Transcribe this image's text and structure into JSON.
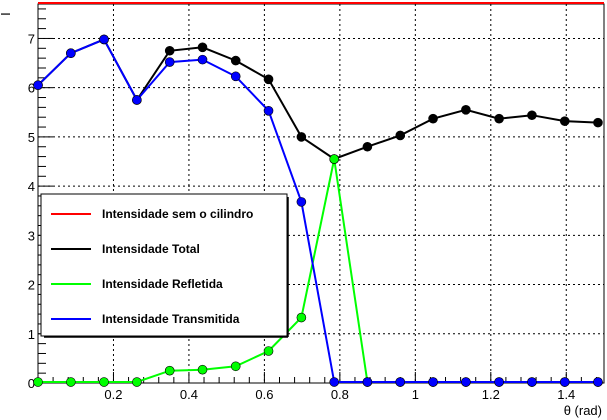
{
  "chart_data": {
    "type": "line",
    "title": "",
    "xlabel": "θ (rad)",
    "ylabel": "I",
    "xlim": [
      0,
      1.5
    ],
    "ylim": [
      0,
      7.7
    ],
    "grid": true,
    "x_ticks": [
      0.2,
      0.4,
      0.6,
      0.8,
      1,
      1.2,
      1.4
    ],
    "x_tick_labels": [
      "0.2",
      "0.4",
      "0.6",
      "0.8",
      "1",
      "1.2",
      "1.4"
    ],
    "y_ticks": [
      0,
      1,
      2,
      3,
      4,
      5,
      6,
      7
    ],
    "y_tick_labels": [
      "0",
      "1",
      "2",
      "3",
      "4",
      "5",
      "6",
      "7"
    ],
    "legend_position": "lower-left",
    "series": [
      {
        "name": "Intensidade sem o cilindro",
        "color": "#ff0000",
        "markers": false,
        "x": [
          0,
          1.5
        ],
        "y": [
          7.72,
          7.72
        ]
      },
      {
        "name": "Intensidade Total",
        "color": "#000000",
        "markers": true,
        "x": [
          0,
          0.087,
          0.175,
          0.262,
          0.349,
          0.436,
          0.524,
          0.611,
          0.698,
          0.785,
          0.873,
          0.96,
          1.047,
          1.134,
          1.222,
          1.309,
          1.396,
          1.484
        ],
        "y": [
          6.05,
          6.7,
          6.98,
          5.75,
          6.75,
          6.82,
          6.55,
          6.17,
          5.0,
          4.55,
          4.8,
          5.03,
          5.37,
          5.55,
          5.37,
          5.44,
          5.32,
          5.29
        ]
      },
      {
        "name": "Intensidade Refletida",
        "color": "#00ff00",
        "markers": true,
        "x": [
          0,
          0.087,
          0.175,
          0.262,
          0.349,
          0.436,
          0.524,
          0.611,
          0.698,
          0.785,
          0.873,
          0.96,
          1.047,
          1.134,
          1.222,
          1.309,
          1.396,
          1.484
        ],
        "y": [
          0.02,
          0.02,
          0.02,
          0.02,
          0.25,
          0.27,
          0.34,
          0.65,
          1.33,
          4.55,
          0.02,
          0.02,
          0.02,
          0.02,
          0.02,
          0.02,
          0.02,
          0.02
        ]
      },
      {
        "name": "Intensidade Transmitida",
        "color": "#0000ff",
        "markers": true,
        "x": [
          0,
          0.087,
          0.175,
          0.262,
          0.349,
          0.436,
          0.524,
          0.611,
          0.698,
          0.785,
          0.873,
          0.96,
          1.047,
          1.134,
          1.222,
          1.309,
          1.396,
          1.484
        ],
        "y": [
          6.05,
          6.7,
          6.98,
          5.75,
          6.52,
          6.57,
          6.23,
          5.53,
          3.68,
          0.02,
          0.02,
          0.02,
          0.02,
          0.02,
          0.02,
          0.02,
          0.02,
          0.02
        ]
      }
    ]
  }
}
